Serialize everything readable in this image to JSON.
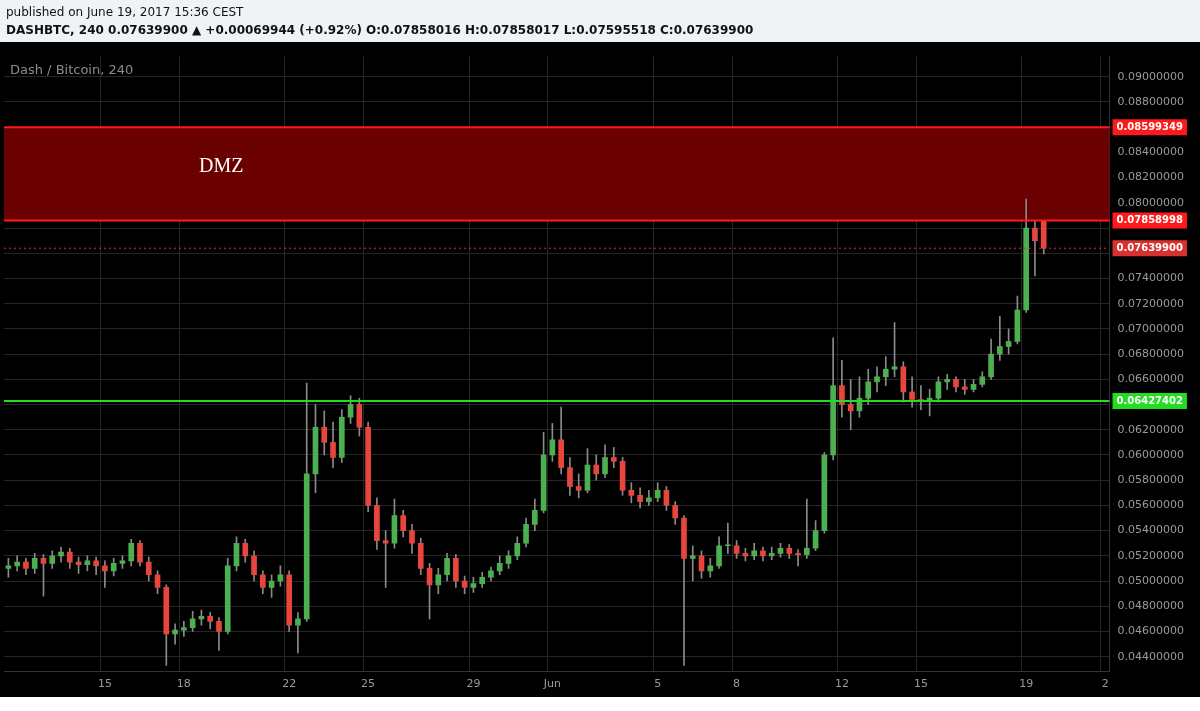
{
  "chart_data": {
    "type": "candlestick",
    "title": "Dash / Bitcoin, 240",
    "annotations": [
      "published on June 19, 2017 15:36 CEST",
      "DASHBTC, 240  0.07639900 ▲ +0.00069944 (+0.92%)  O:0.07858016 H:0.07858017 L:0.07595518 C:0.07639900"
    ],
    "categories": [
      null,
      null,
      null,
      null,
      null,
      null,
      null,
      null,
      null,
      null,
      null,
      "15",
      null,
      null,
      null,
      null,
      null,
      null,
      null,
      null,
      "18",
      null,
      null,
      null,
      null,
      null,
      null,
      null,
      null,
      null,
      null,
      null,
      "22",
      null,
      null,
      null,
      null,
      null,
      null,
      null,
      null,
      "25",
      null,
      null,
      null,
      null,
      null,
      null,
      null,
      null,
      null,
      null,
      null,
      "29",
      null,
      null,
      null,
      null,
      null,
      null,
      null,
      null,
      "Jun",
      null,
      null,
      null,
      null,
      null,
      null,
      null,
      null,
      null,
      null,
      null,
      "5",
      null,
      null,
      null,
      null,
      null,
      null,
      null,
      null,
      "8",
      null,
      null,
      null,
      null,
      null,
      null,
      null,
      null,
      null,
      null,
      null,
      "12",
      null,
      null,
      null,
      null,
      null,
      null,
      null,
      null,
      "15",
      null,
      null,
      null,
      null,
      null,
      null,
      null,
      null,
      null,
      null,
      null,
      "19",
      null,
      null,
      null,
      null,
      null,
      null,
      null,
      null,
      "2"
    ],
    "ohlc": [
      [
        0.051,
        0.0518,
        0.0503,
        0.0512
      ],
      [
        0.0512,
        0.052,
        0.0508,
        0.0515
      ],
      [
        0.0515,
        0.0518,
        0.0505,
        0.051
      ],
      [
        0.051,
        0.0522,
        0.0506,
        0.0518
      ],
      [
        0.0518,
        0.0521,
        0.0488,
        0.0514
      ],
      [
        0.0514,
        0.0524,
        0.051,
        0.052
      ],
      [
        0.052,
        0.0527,
        0.0515,
        0.0523
      ],
      [
        0.0523,
        0.0526,
        0.051,
        0.0515
      ],
      [
        0.0515,
        0.0519,
        0.0506,
        0.0513
      ],
      [
        0.0513,
        0.052,
        0.0508,
        0.0516
      ],
      [
        0.0516,
        0.0519,
        0.0505,
        0.0512
      ],
      [
        0.0512,
        0.0516,
        0.0495,
        0.0508
      ],
      [
        0.0508,
        0.0518,
        0.0504,
        0.0514
      ],
      [
        0.0514,
        0.052,
        0.051,
        0.0516
      ],
      [
        0.0516,
        0.0533,
        0.0512,
        0.053
      ],
      [
        0.053,
        0.0532,
        0.0512,
        0.0515
      ],
      [
        0.0515,
        0.0519,
        0.05,
        0.0505
      ],
      [
        0.0505,
        0.0508,
        0.049,
        0.0495
      ],
      [
        0.0495,
        0.0497,
        0.0433,
        0.0458
      ],
      [
        0.0458,
        0.0466,
        0.045,
        0.0461
      ],
      [
        0.0461,
        0.0468,
        0.0456,
        0.0463
      ],
      [
        0.0463,
        0.0476,
        0.046,
        0.047
      ],
      [
        0.047,
        0.0477,
        0.0465,
        0.0472
      ],
      [
        0.0472,
        0.0475,
        0.0462,
        0.0468
      ],
      [
        0.0468,
        0.0471,
        0.0445,
        0.046
      ],
      [
        0.046,
        0.0518,
        0.0458,
        0.0512
      ],
      [
        0.0512,
        0.0535,
        0.0508,
        0.053
      ],
      [
        0.053,
        0.0533,
        0.0515,
        0.052
      ],
      [
        0.052,
        0.0524,
        0.05,
        0.0505
      ],
      [
        0.0505,
        0.0508,
        0.049,
        0.0495
      ],
      [
        0.0495,
        0.0505,
        0.0487,
        0.05
      ],
      [
        0.05,
        0.0512,
        0.0496,
        0.0505
      ],
      [
        0.0505,
        0.0508,
        0.046,
        0.0465
      ],
      [
        0.0465,
        0.0475,
        0.0443,
        0.047
      ],
      [
        0.047,
        0.0657,
        0.0468,
        0.0585
      ],
      [
        0.0585,
        0.064,
        0.057,
        0.0622
      ],
      [
        0.0622,
        0.0635,
        0.06,
        0.061
      ],
      [
        0.061,
        0.0626,
        0.059,
        0.0598
      ],
      [
        0.0598,
        0.0636,
        0.0594,
        0.063
      ],
      [
        0.063,
        0.0647,
        0.0625,
        0.064
      ],
      [
        0.064,
        0.0645,
        0.0615,
        0.0622
      ],
      [
        0.0622,
        0.0626,
        0.0555,
        0.056
      ],
      [
        0.056,
        0.0566,
        0.0525,
        0.0532
      ],
      [
        0.0532,
        0.054,
        0.0495,
        0.053
      ],
      [
        0.053,
        0.0565,
        0.0526,
        0.0552
      ],
      [
        0.0552,
        0.0556,
        0.0535,
        0.054
      ],
      [
        0.054,
        0.0545,
        0.0522,
        0.053
      ],
      [
        0.053,
        0.0534,
        0.0505,
        0.051
      ],
      [
        0.051,
        0.0514,
        0.047,
        0.0497
      ],
      [
        0.0497,
        0.051,
        0.049,
        0.0505
      ],
      [
        0.0505,
        0.0522,
        0.05,
        0.0518
      ],
      [
        0.0518,
        0.0521,
        0.0495,
        0.05
      ],
      [
        0.05,
        0.0504,
        0.049,
        0.0495
      ],
      [
        0.0495,
        0.0503,
        0.0491,
        0.0498
      ],
      [
        0.0498,
        0.0507,
        0.0495,
        0.0503
      ],
      [
        0.0503,
        0.0511,
        0.05,
        0.0508
      ],
      [
        0.0508,
        0.052,
        0.0505,
        0.0514
      ],
      [
        0.0514,
        0.0524,
        0.051,
        0.052
      ],
      [
        0.052,
        0.0535,
        0.0517,
        0.053
      ],
      [
        0.053,
        0.055,
        0.0527,
        0.0545
      ],
      [
        0.0545,
        0.0565,
        0.054,
        0.0556
      ],
      [
        0.0556,
        0.0618,
        0.0554,
        0.06
      ],
      [
        0.06,
        0.0625,
        0.0595,
        0.0612
      ],
      [
        0.0612,
        0.0638,
        0.0585,
        0.059
      ],
      [
        0.059,
        0.0598,
        0.0568,
        0.0575
      ],
      [
        0.0575,
        0.0585,
        0.0566,
        0.0572
      ],
      [
        0.0572,
        0.0605,
        0.057,
        0.0592
      ],
      [
        0.0592,
        0.06,
        0.058,
        0.0585
      ],
      [
        0.0585,
        0.0608,
        0.0582,
        0.0598
      ],
      [
        0.0598,
        0.0606,
        0.059,
        0.0595
      ],
      [
        0.0595,
        0.0598,
        0.0568,
        0.0572
      ],
      [
        0.0572,
        0.0578,
        0.0562,
        0.0568
      ],
      [
        0.0568,
        0.0574,
        0.0558,
        0.0563
      ],
      [
        0.0563,
        0.0572,
        0.056,
        0.0566
      ],
      [
        0.0566,
        0.0578,
        0.0563,
        0.0572
      ],
      [
        0.0572,
        0.0575,
        0.0556,
        0.056
      ],
      [
        0.056,
        0.0563,
        0.0545,
        0.055
      ],
      [
        0.055,
        0.0552,
        0.0433,
        0.0518
      ],
      [
        0.0518,
        0.0528,
        0.05,
        0.052
      ],
      [
        0.052,
        0.0524,
        0.0502,
        0.0508
      ],
      [
        0.0508,
        0.0518,
        0.0503,
        0.0512
      ],
      [
        0.0512,
        0.0535,
        0.051,
        0.0528
      ],
      [
        0.0528,
        0.0546,
        0.0522,
        0.0528
      ],
      [
        0.0528,
        0.0532,
        0.0518,
        0.0522
      ],
      [
        0.0522,
        0.0526,
        0.0516,
        0.052
      ],
      [
        0.052,
        0.053,
        0.0517,
        0.0524
      ],
      [
        0.0524,
        0.0527,
        0.0516,
        0.052
      ],
      [
        0.052,
        0.0527,
        0.0517,
        0.0522
      ],
      [
        0.0522,
        0.053,
        0.0519,
        0.0526
      ],
      [
        0.0526,
        0.0529,
        0.0518,
        0.0522
      ],
      [
        0.0522,
        0.0525,
        0.0512,
        0.0521
      ],
      [
        0.0521,
        0.0565,
        0.0518,
        0.0526
      ],
      [
        0.0526,
        0.0548,
        0.0524,
        0.054
      ],
      [
        0.054,
        0.0602,
        0.0538,
        0.06
      ],
      [
        0.06,
        0.0693,
        0.0596,
        0.0655
      ],
      [
        0.0655,
        0.0675,
        0.063,
        0.064
      ],
      [
        0.064,
        0.066,
        0.062,
        0.0635
      ],
      [
        0.0635,
        0.0662,
        0.063,
        0.0645
      ],
      [
        0.0645,
        0.0668,
        0.064,
        0.0658
      ],
      [
        0.0658,
        0.067,
        0.065,
        0.0662
      ],
      [
        0.0662,
        0.0678,
        0.0655,
        0.0668
      ],
      [
        0.0668,
        0.0705,
        0.0662,
        0.067
      ],
      [
        0.067,
        0.0674,
        0.0642,
        0.065
      ],
      [
        0.065,
        0.0662,
        0.0638,
        0.0644
      ],
      [
        0.0644,
        0.0655,
        0.0636,
        0.0643
      ],
      [
        0.0643,
        0.0652,
        0.0631,
        0.0645
      ],
      [
        0.0645,
        0.0662,
        0.0642,
        0.0658
      ],
      [
        0.0658,
        0.0664,
        0.0652,
        0.066
      ],
      [
        0.066,
        0.0662,
        0.065,
        0.0654
      ],
      [
        0.0654,
        0.066,
        0.0648,
        0.0652
      ],
      [
        0.0652,
        0.066,
        0.065,
        0.0656
      ],
      [
        0.0656,
        0.0666,
        0.0654,
        0.0662
      ],
      [
        0.0662,
        0.0692,
        0.066,
        0.068
      ],
      [
        0.068,
        0.071,
        0.0675,
        0.0686
      ],
      [
        0.0686,
        0.07,
        0.068,
        0.069
      ],
      [
        0.069,
        0.0726,
        0.0688,
        0.0715
      ],
      [
        0.0715,
        0.0803,
        0.0713,
        0.078
      ],
      [
        0.078,
        0.0786,
        0.0742,
        0.077
      ],
      [
        0.07858016,
        0.07858017,
        0.07595518,
        0.076399
      ],
      null,
      null,
      null,
      null,
      null,
      null,
      null
    ],
    "ylim": [
      0.0428,
      0.0916
    ],
    "yticks": [
      {
        "value": 0.044,
        "label": "0.04400000"
      },
      {
        "value": 0.046,
        "label": "0.04600000"
      },
      {
        "value": 0.048,
        "label": "0.04800000"
      },
      {
        "value": 0.05,
        "label": "0.05000000"
      },
      {
        "value": 0.052,
        "label": "0.05200000"
      },
      {
        "value": 0.054,
        "label": "0.05400000"
      },
      {
        "value": 0.056,
        "label": "0.05600000"
      },
      {
        "value": 0.058,
        "label": "0.05800000"
      },
      {
        "value": 0.06,
        "label": "0.06000000"
      },
      {
        "value": 0.062,
        "label": "0.06200000"
      },
      {
        "value": 0.064,
        "label": null
      },
      {
        "value": 0.066,
        "label": "0.06600000"
      },
      {
        "value": 0.068,
        "label": "0.06800000"
      },
      {
        "value": 0.07,
        "label": "0.07000000"
      },
      {
        "value": 0.072,
        "label": "0.07200000"
      },
      {
        "value": 0.074,
        "label": "0.07400000"
      },
      {
        "value": 0.076,
        "label": null
      },
      {
        "value": 0.078,
        "label": null
      },
      {
        "value": 0.08,
        "label": "0.08000000"
      },
      {
        "value": 0.082,
        "label": "0.08200000"
      },
      {
        "value": 0.084,
        "label": "0.08400000"
      },
      {
        "value": 0.086,
        "label": null
      },
      {
        "value": 0.088,
        "label": "0.08800000"
      },
      {
        "value": 0.09,
        "label": "0.09000000"
      }
    ],
    "bands": [
      {
        "axis": "y",
        "from": 0.07858998,
        "to": 0.08599349,
        "label": "DMZ",
        "color": "#6b0000"
      }
    ],
    "ref_lines": [
      {
        "axis": "y",
        "value": 0.08599349,
        "label": "0.08599349",
        "color": "#ff1a1a"
      },
      {
        "axis": "y",
        "value": 0.07858998,
        "label": "0.07858998",
        "color": "#ff1a1a"
      },
      {
        "axis": "y",
        "value": 0.076399,
        "label": "0.07639900",
        "color": "#d93030",
        "line_style": "dotted"
      },
      {
        "axis": "y",
        "value": 0.06427402,
        "label": "0.06427402",
        "color": "#22dd22"
      }
    ],
    "grid": true
  }
}
